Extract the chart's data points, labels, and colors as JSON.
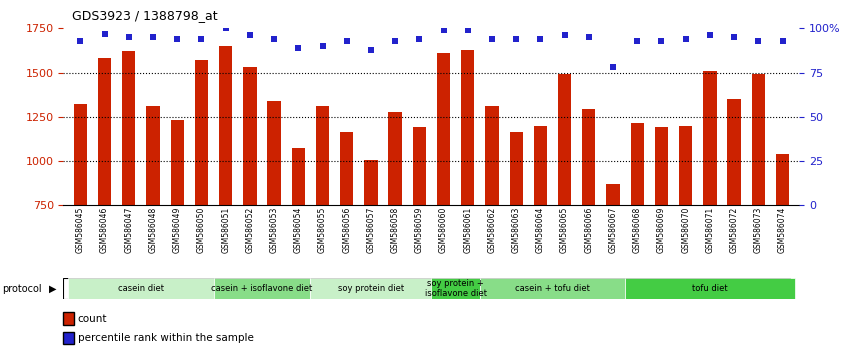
{
  "title": "GDS3923 / 1388798_at",
  "samples": [
    "GSM586045",
    "GSM586046",
    "GSM586047",
    "GSM586048",
    "GSM586049",
    "GSM586050",
    "GSM586051",
    "GSM586052",
    "GSM586053",
    "GSM586054",
    "GSM586055",
    "GSM586056",
    "GSM586057",
    "GSM586058",
    "GSM586059",
    "GSM586060",
    "GSM586061",
    "GSM586062",
    "GSM586063",
    "GSM586064",
    "GSM586065",
    "GSM586066",
    "GSM586067",
    "GSM586068",
    "GSM586069",
    "GSM586070",
    "GSM586071",
    "GSM586072",
    "GSM586073",
    "GSM586074"
  ],
  "counts": [
    1325,
    1580,
    1620,
    1310,
    1230,
    1570,
    1650,
    1530,
    1340,
    1075,
    1310,
    1165,
    1005,
    1280,
    1195,
    1610,
    1625,
    1310,
    1165,
    1200,
    1490,
    1295,
    870,
    1215,
    1195,
    1200,
    1510,
    1350,
    1490,
    1040
  ],
  "percentiles": [
    93,
    97,
    95,
    95,
    94,
    94,
    100,
    96,
    94,
    89,
    90,
    93,
    88,
    93,
    94,
    99,
    99,
    94,
    94,
    94,
    96,
    95,
    78,
    93,
    93,
    94,
    96,
    95,
    93,
    93
  ],
  "ylim_left": [
    750,
    1750
  ],
  "ylim_right": [
    0,
    100
  ],
  "yticks_left": [
    750,
    1000,
    1250,
    1500,
    1750
  ],
  "yticks_right": [
    0,
    25,
    50,
    75,
    100
  ],
  "ytick_right_labels": [
    "0",
    "25",
    "50",
    "75",
    "100%"
  ],
  "bar_color": "#cc2200",
  "dot_color": "#2222cc",
  "bg_color": "#ffffff",
  "protocol_groups": [
    {
      "label": "casein diet",
      "start": 0,
      "end": 5,
      "color": "#c8f0c8"
    },
    {
      "label": "casein + isoflavone diet",
      "start": 6,
      "end": 9,
      "color": "#88dd88"
    },
    {
      "label": "soy protein diet",
      "start": 10,
      "end": 14,
      "color": "#c8f0c8"
    },
    {
      "label": "soy protein +\nisoflavone diet",
      "start": 15,
      "end": 16,
      "color": "#44cc44"
    },
    {
      "label": "casein + tofu diet",
      "start": 17,
      "end": 22,
      "color": "#88dd88"
    },
    {
      "label": "tofu diet",
      "start": 23,
      "end": 29,
      "color": "#44cc44"
    }
  ]
}
